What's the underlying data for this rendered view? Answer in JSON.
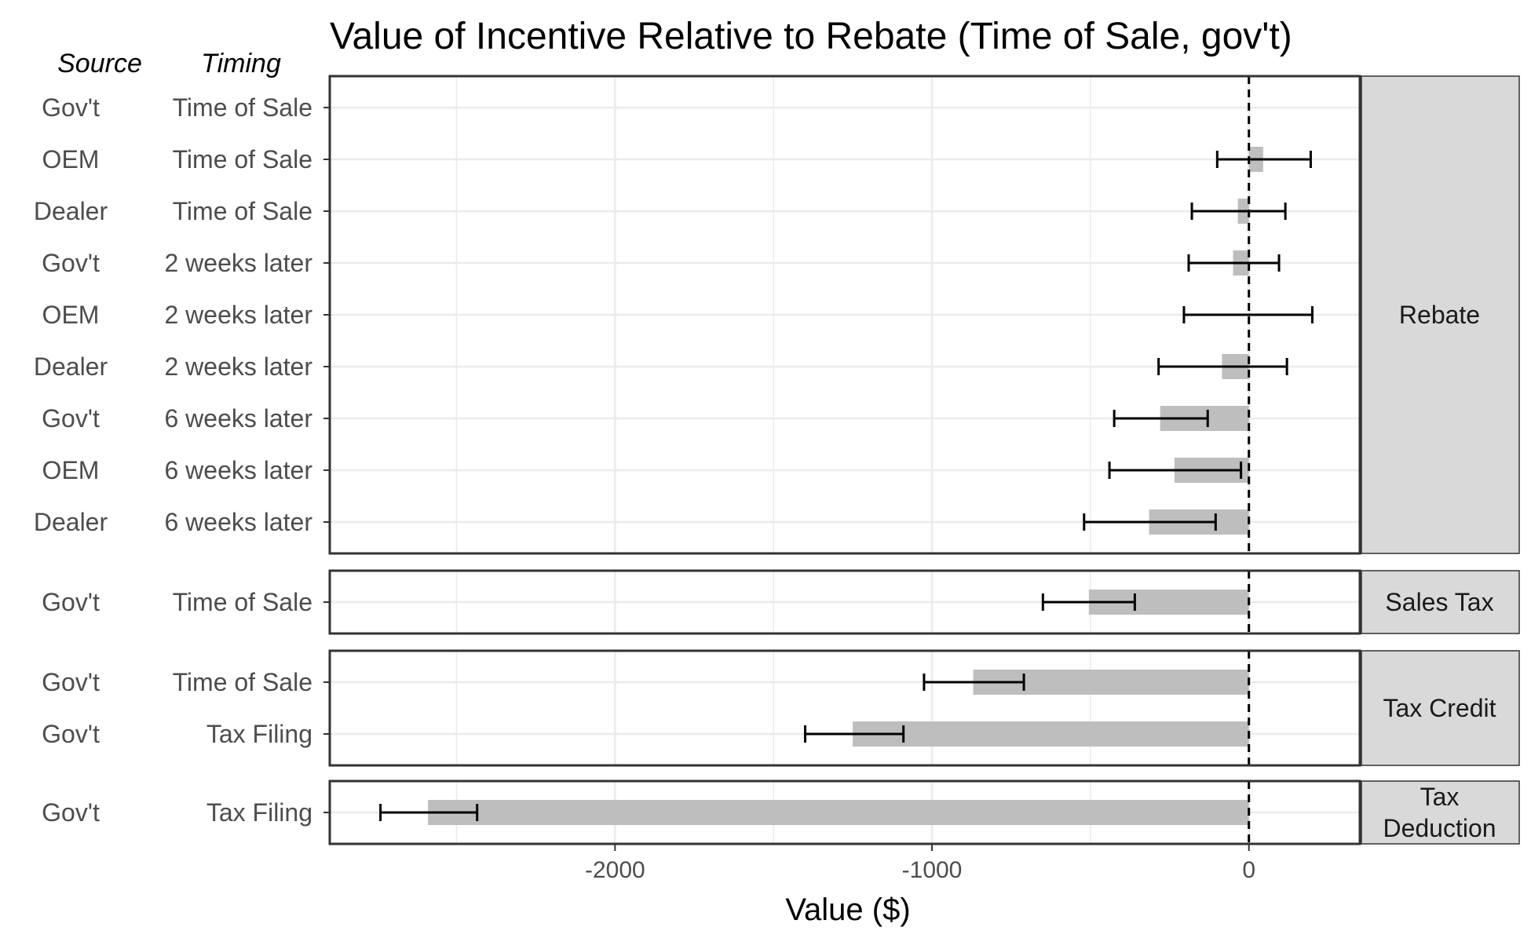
{
  "chart_data": {
    "type": "bar",
    "title": "Value of Incentive Relative to Rebate (Time of Sale, gov't)",
    "xlabel": "Value ($)",
    "ylabel": "",
    "column_headers": {
      "source": "Source",
      "timing": "Timing"
    },
    "xlim": [
      -2900,
      350
    ],
    "x_ticks": [
      -2000,
      -1000,
      0
    ],
    "x_tick_labels": [
      "-2000",
      "-1000",
      "0"
    ],
    "reference_line": 0,
    "grid": true,
    "colors": {
      "bar": "#bebebe",
      "errorbar": "#000000",
      "strip": "#d9d9d9",
      "grid": "#ebebeb",
      "panel_border": "#333333"
    },
    "panels": [
      {
        "facet": [
          "Rebate"
        ],
        "rows": [
          {
            "source": "Gov't",
            "timing": "Time of Sale",
            "value": 0,
            "ci": null
          },
          {
            "source": "OEM",
            "timing": "Time of Sale",
            "value": 45,
            "ci": [
              -100,
              195
            ]
          },
          {
            "source": "Dealer",
            "timing": "Time of Sale",
            "value": -35,
            "ci": [
              -180,
              115
            ]
          },
          {
            "source": "Gov't",
            "timing": "2 weeks later",
            "value": -50,
            "ci": [
              -190,
              95
            ]
          },
          {
            "source": "OEM",
            "timing": "2 weeks later",
            "value": 0,
            "ci": [
              -205,
              200
            ]
          },
          {
            "source": "Dealer",
            "timing": "2 weeks later",
            "value": -85,
            "ci": [
              -285,
              120
            ]
          },
          {
            "source": "Gov't",
            "timing": "6 weeks later",
            "value": -280,
            "ci": [
              -425,
              -130
            ]
          },
          {
            "source": "OEM",
            "timing": "6 weeks later",
            "value": -235,
            "ci": [
              -440,
              -25
            ]
          },
          {
            "source": "Dealer",
            "timing": "6 weeks later",
            "value": -315,
            "ci": [
              -520,
              -105
            ]
          }
        ]
      },
      {
        "facet": [
          "Sales Tax"
        ],
        "rows": [
          {
            "source": "Gov't",
            "timing": "Time of Sale",
            "value": -505,
            "ci": [
              -650,
              -360
            ]
          }
        ]
      },
      {
        "facet": [
          "Tax Credit"
        ],
        "rows": [
          {
            "source": "Gov't",
            "timing": "Time of Sale",
            "value": -870,
            "ci": [
              -1025,
              -710
            ]
          },
          {
            "source": "Gov't",
            "timing": "Tax Filing",
            "value": -1250,
            "ci": [
              -1400,
              -1090
            ]
          }
        ]
      },
      {
        "facet": [
          "Tax",
          "Deduction"
        ],
        "rows": [
          {
            "source": "Gov't",
            "timing": "Tax Filing",
            "value": -2590,
            "ci": [
              -2740,
              -2435
            ]
          }
        ]
      }
    ]
  }
}
